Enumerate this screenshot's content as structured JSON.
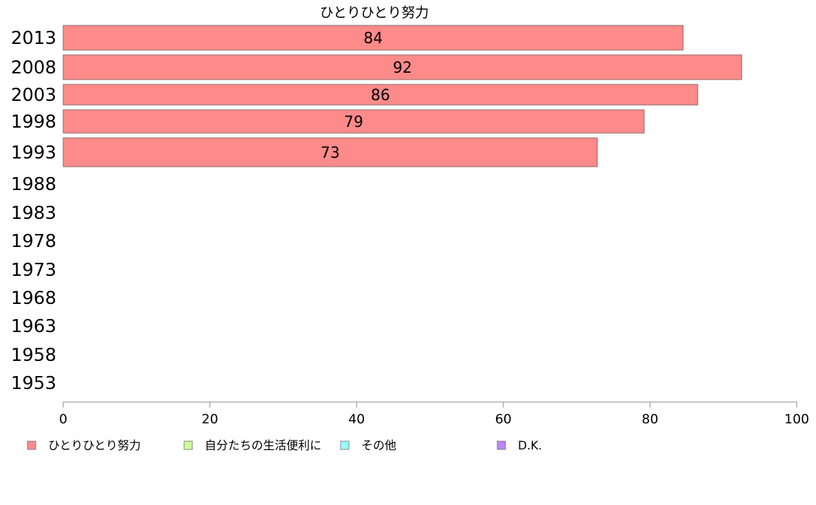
{
  "chart_data": {
    "type": "bar",
    "orientation": "horizontal",
    "title": "ひとりひとり努力",
    "categories": [
      "2013",
      "2008",
      "2003",
      "1998",
      "1993",
      "1988",
      "1983",
      "1978",
      "1973",
      "1968",
      "1963",
      "1958",
      "1953"
    ],
    "series": [
      {
        "name": "ひとりひとり努力",
        "color": "#ff8a8a",
        "values": [
          84.5,
          92.5,
          86.5,
          79.2,
          72.8,
          null,
          null,
          null,
          null,
          null,
          null,
          null,
          null
        ],
        "labels": [
          "84",
          "92",
          "86",
          "79",
          "73",
          "",
          "",
          "",
          "",
          "",
          "",
          "",
          ""
        ]
      },
      {
        "name": "自分たちの生活便利に",
        "color": "#ccff99",
        "values": [
          null,
          null,
          null,
          null,
          null,
          null,
          null,
          null,
          null,
          null,
          null,
          null,
          null
        ]
      },
      {
        "name": "その他",
        "color": "#99ffff",
        "values": [
          null,
          null,
          null,
          null,
          null,
          null,
          null,
          null,
          null,
          null,
          null,
          null,
          null
        ]
      },
      {
        "name": "D.K.",
        "color": "#bb88ff",
        "values": [
          null,
          null,
          null,
          null,
          null,
          null,
          null,
          null,
          null,
          null,
          null,
          null,
          null
        ]
      }
    ],
    "xlim": [
      0,
      100
    ],
    "xticks": [
      0,
      20,
      40,
      60,
      80,
      100
    ],
    "xlabel": "",
    "ylabel": "",
    "grid": false,
    "legend_position": "bottom"
  }
}
